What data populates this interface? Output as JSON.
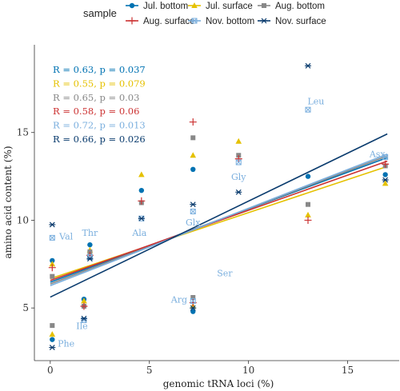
{
  "chart_data": {
    "type": "scatter",
    "xlabel": "genomic tRNA loci (%)",
    "ylabel": "amino acid content (%)",
    "xlim": [
      -0.8,
      17.6
    ],
    "ylim": [
      2.0,
      20.0
    ],
    "xticks": [
      0,
      5,
      10,
      15
    ],
    "yticks": [
      5,
      10,
      15
    ],
    "legend_title": "sample",
    "legend_position": "top",
    "grid": false,
    "series": [
      {
        "name": "Jul. bottom",
        "color": "#0072B2",
        "marker": "circle",
        "points": [
          [
            0.1,
            7.7
          ],
          [
            0.1,
            3.2
          ],
          [
            1.7,
            5.5
          ],
          [
            2.0,
            8.6
          ],
          [
            4.6,
            11.7
          ],
          [
            7.2,
            12.9
          ],
          [
            7.2,
            4.8
          ],
          [
            13.0,
            12.5
          ],
          [
            16.9,
            12.6
          ]
        ],
        "fit": [
          [
            0,
            6.47
          ],
          [
            17,
            13.57
          ]
        ]
      },
      {
        "name": "Jul. surface",
        "color": "#E5C100",
        "marker": "triangle",
        "points": [
          [
            0.1,
            7.5
          ],
          [
            0.1,
            3.5
          ],
          [
            1.7,
            5.4
          ],
          [
            2.0,
            8.3
          ],
          [
            4.6,
            12.6
          ],
          [
            7.2,
            13.7
          ],
          [
            7.2,
            5.1
          ],
          [
            9.5,
            14.5
          ],
          [
            13.0,
            10.3
          ],
          [
            16.9,
            12.1
          ]
        ],
        "fit": [
          [
            0,
            6.67
          ],
          [
            17,
            13.07
          ]
        ]
      },
      {
        "name": "Aug. bottom",
        "color": "#888888",
        "marker": "square",
        "points": [
          [
            0.1,
            6.8
          ],
          [
            0.1,
            4.0
          ],
          [
            1.7,
            5.1
          ],
          [
            2.0,
            8.2
          ],
          [
            4.6,
            11.0
          ],
          [
            7.2,
            14.7
          ],
          [
            7.2,
            5.6
          ],
          [
            9.5,
            13.7
          ],
          [
            13.0,
            10.9
          ],
          [
            16.9,
            13.1
          ]
        ],
        "fit": [
          [
            0,
            6.37
          ],
          [
            17,
            13.67
          ]
        ]
      },
      {
        "name": "Aug. surface",
        "color": "#CC3333",
        "marker": "plus",
        "points": [
          [
            0.1,
            7.3
          ],
          [
            1.7,
            5.1
          ],
          [
            2.0,
            8.0
          ],
          [
            4.6,
            11.1
          ],
          [
            7.2,
            15.6
          ],
          [
            7.2,
            5.3
          ],
          [
            9.5,
            13.5
          ],
          [
            13.0,
            10.0
          ],
          [
            16.9,
            13.2
          ]
        ],
        "fit": [
          [
            0,
            6.57
          ],
          [
            17,
            13.37
          ]
        ]
      },
      {
        "name": "Nov. bottom",
        "color": "#7BAFDE",
        "marker": "boxed-x",
        "points": [
          [
            0.1,
            9.0
          ],
          [
            1.7,
            4.3
          ],
          [
            2.0,
            7.9
          ],
          [
            4.6,
            10.1
          ],
          [
            7.2,
            10.5
          ],
          [
            7.2,
            5.4
          ],
          [
            9.5,
            13.3
          ],
          [
            13.0,
            16.3
          ],
          [
            16.9,
            13.6
          ]
        ],
        "fit": [
          [
            0,
            6.27
          ],
          [
            17,
            13.77
          ]
        ]
      },
      {
        "name": "Nov. surface",
        "color": "#0B3C6E",
        "marker": "star",
        "points": [
          [
            0.1,
            9.75
          ],
          [
            0.1,
            2.75
          ],
          [
            1.7,
            4.4
          ],
          [
            2.0,
            7.8
          ],
          [
            4.6,
            10.1
          ],
          [
            7.2,
            10.9
          ],
          [
            7.2,
            5.0
          ],
          [
            9.5,
            11.6
          ],
          [
            13.0,
            18.8
          ],
          [
            16.9,
            12.3
          ]
        ],
        "fit": [
          [
            0,
            5.62
          ],
          [
            17,
            14.92
          ]
        ]
      }
    ],
    "annotations": [
      {
        "text": "R = 0.63, p = 0.037",
        "color": "#0072B2"
      },
      {
        "text": "R = 0.55, p = 0.079",
        "color": "#E5C100"
      },
      {
        "text": "R = 0.65, p = 0.03",
        "color": "#888888"
      },
      {
        "text": "R = 0.58, p = 0.06",
        "color": "#CC3333"
      },
      {
        "text": "R = 0.72, p = 0.013",
        "color": "#7BAFDE"
      },
      {
        "text": "R = 0.66, p = 0.026",
        "color": "#0B3C6E"
      }
    ],
    "point_labels": [
      {
        "text": "Val",
        "x": 0.8,
        "y": 8.9
      },
      {
        "text": "Phe",
        "x": 0.8,
        "y": 2.8
      },
      {
        "text": "Ile",
        "x": 1.6,
        "y": 3.8
      },
      {
        "text": "Thr",
        "x": 2.0,
        "y": 9.1
      },
      {
        "text": "Ala",
        "x": 4.5,
        "y": 9.1
      },
      {
        "text": "Glx",
        "x": 7.2,
        "y": 9.7
      },
      {
        "text": "Arg",
        "x": 6.5,
        "y": 5.3
      },
      {
        "text": "Ser",
        "x": 8.8,
        "y": 6.8
      },
      {
        "text": "Gly",
        "x": 9.5,
        "y": 12.3
      },
      {
        "text": "Leu",
        "x": 13.4,
        "y": 16.6
      },
      {
        "text": "Asx",
        "x": 16.5,
        "y": 13.6
      }
    ],
    "label_color": "#7BAFDE"
  }
}
